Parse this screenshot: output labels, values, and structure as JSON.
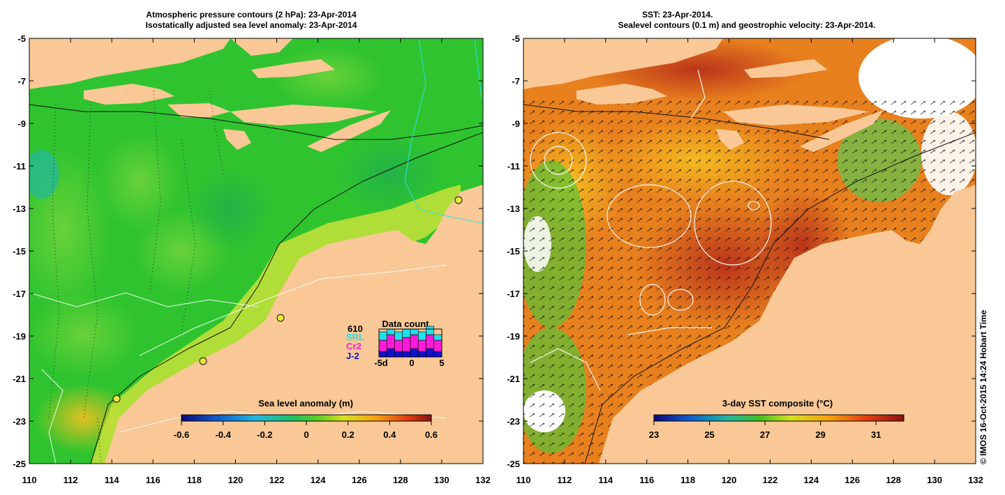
{
  "left_panel": {
    "title_line1": "Atmospheric pressure contours (2 hPa): 23-Apr-2014",
    "title_line2": "Isostatically adjusted sea level anomaly: 23-Apr-2014",
    "colorbar": {
      "label": "Sea level anomaly (m)",
      "ticks": [
        "-0.6",
        "-0.4",
        "-0.2",
        "0",
        "0.2",
        "0.4",
        "0.6"
      ],
      "min": -0.6,
      "max": 0.6
    },
    "data_count": {
      "title": "Data count",
      "total": "610",
      "sat1": "SRL",
      "sat2": "Cr2",
      "sat3": "J-2",
      "axis": [
        "-5d",
        "0",
        "5"
      ],
      "bars_sat1": [
        3,
        2,
        3,
        3,
        2,
        3,
        3,
        2
      ],
      "bars_sat2": [
        4,
        5,
        4,
        5,
        5,
        4,
        5,
        4
      ],
      "bars_sat3": [
        2,
        3,
        2,
        2,
        3,
        2,
        3,
        2
      ],
      "colors": {
        "sat1": "#22e0e8",
        "sat2": "#ff1ad9",
        "sat3": "#1111cc"
      }
    }
  },
  "right_panel": {
    "title_line1": "SST: 23-Apr-2014.",
    "title_line2": "Sealevel contours (0.1 m) and geostrophic velocity: 23-Apr-2014.",
    "colorbar": {
      "label": "3-day SST composite (°C)",
      "ticks": [
        "23",
        "25",
        "27",
        "29",
        "31"
      ],
      "min": 23,
      "max": 32
    }
  },
  "axes": {
    "lon_ticks": [
      "110",
      "112",
      "114",
      "116",
      "118",
      "120",
      "122",
      "124",
      "126",
      "128",
      "130",
      "132"
    ],
    "lat_ticks": [
      "-5",
      "-7",
      "-9",
      "-11",
      "-13",
      "-15",
      "-17",
      "-19",
      "-21",
      "-23",
      "-25"
    ],
    "lon_range": [
      110,
      132
    ],
    "lat_range": [
      -25,
      -5
    ]
  },
  "colors": {
    "land": "#f9c896",
    "sea_green": "#2fc42f",
    "sst_orange": "#e8801e"
  },
  "credit": "© IMOS 16-Oct-2015 14:24 Hobart Time"
}
